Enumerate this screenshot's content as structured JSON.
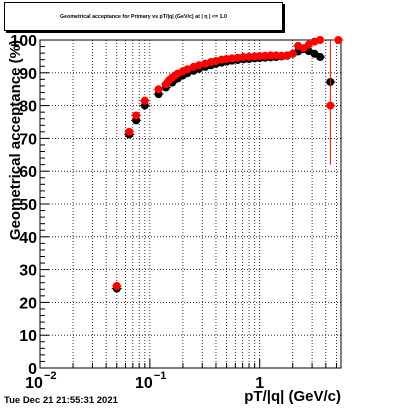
{
  "timestamp": "Tue Dec 21 21:55:31 2021",
  "chart_data": {
    "type": "scatter",
    "title": "Geometrical acceptance for Primary vs pT/|q| (GeV/c) at | η | <= 1.0",
    "xlabel": "pT/|q| (GeV/c)",
    "ylabel": "Geometrical acceptance (%)",
    "xscale": "log",
    "xlim": [
      0.01,
      5.5
    ],
    "ylim": [
      0,
      100
    ],
    "grid": true,
    "x_tick_labels": [
      {
        "value": 0.01,
        "base": "10",
        "exp": "−2"
      },
      {
        "value": 0.1,
        "base": "10",
        "exp": "−1"
      },
      {
        "value": 1,
        "base": "1",
        "exp": ""
      }
    ],
    "y_ticks": [
      0,
      10,
      20,
      30,
      40,
      50,
      60,
      70,
      80,
      90,
      100
    ],
    "series": [
      {
        "color": "#000000",
        "points": [
          {
            "x": 0.05,
            "y": 24.2
          },
          {
            "x": 0.065,
            "y": 71.2
          },
          {
            "x": 0.075,
            "y": 75.5
          },
          {
            "x": 0.09,
            "y": 80
          },
          {
            "x": 0.12,
            "y": 83.5
          },
          {
            "x": 0.14,
            "y": 85.5
          },
          {
            "x": 0.16,
            "y": 87
          },
          {
            "x": 0.18,
            "y": 88.3
          },
          {
            "x": 0.2,
            "y": 89.2
          },
          {
            "x": 0.22,
            "y": 89.9
          },
          {
            "x": 0.25,
            "y": 90.6
          },
          {
            "x": 0.28,
            "y": 91.2
          },
          {
            "x": 0.32,
            "y": 91.8
          },
          {
            "x": 0.36,
            "y": 92.3
          },
          {
            "x": 0.4,
            "y": 92.7
          },
          {
            "x": 0.45,
            "y": 93.1
          },
          {
            "x": 0.5,
            "y": 93.4
          },
          {
            "x": 0.56,
            "y": 93.7
          },
          {
            "x": 0.63,
            "y": 93.9
          },
          {
            "x": 0.71,
            "y": 94.1
          },
          {
            "x": 0.8,
            "y": 94.2
          },
          {
            "x": 0.9,
            "y": 94.4
          },
          {
            "x": 1.0,
            "y": 94.5
          },
          {
            "x": 1.12,
            "y": 94.6
          },
          {
            "x": 1.26,
            "y": 94.7
          },
          {
            "x": 1.41,
            "y": 94.8
          },
          {
            "x": 1.58,
            "y": 95
          },
          {
            "x": 1.78,
            "y": 95.2
          },
          {
            "x": 2.0,
            "y": 95.8
          },
          {
            "x": 2.24,
            "y": 96.5
          },
          {
            "x": 2.5,
            "y": 97.2
          },
          {
            "x": 2.8,
            "y": 96.6
          },
          {
            "x": 3.16,
            "y": 95.8
          },
          {
            "x": 3.55,
            "y": 94.8
          },
          {
            "x": 4.4,
            "y": 87.2
          }
        ]
      },
      {
        "color": "#ff0000",
        "points": [
          {
            "x": 0.05,
            "y": 25
          },
          {
            "x": 0.065,
            "y": 72
          },
          {
            "x": 0.075,
            "y": 77
          },
          {
            "x": 0.09,
            "y": 81.5
          },
          {
            "x": 0.12,
            "y": 85
          },
          {
            "x": 0.14,
            "y": 86.5
          },
          {
            "x": 0.15,
            "y": 87.8
          },
          {
            "x": 0.16,
            "y": 88.6
          },
          {
            "x": 0.17,
            "y": 89.2
          },
          {
            "x": 0.18,
            "y": 89.8
          },
          {
            "x": 0.2,
            "y": 90.5
          },
          {
            "x": 0.22,
            "y": 91.1
          },
          {
            "x": 0.25,
            "y": 91.8
          },
          {
            "x": 0.28,
            "y": 92.3
          },
          {
            "x": 0.32,
            "y": 92.8
          },
          {
            "x": 0.36,
            "y": 93.3
          },
          {
            "x": 0.4,
            "y": 93.6
          },
          {
            "x": 0.45,
            "y": 94
          },
          {
            "x": 0.5,
            "y": 94.2
          },
          {
            "x": 0.56,
            "y": 94.4
          },
          {
            "x": 0.63,
            "y": 94.6
          },
          {
            "x": 0.71,
            "y": 94.8
          },
          {
            "x": 0.8,
            "y": 94.9
          },
          {
            "x": 0.9,
            "y": 95
          },
          {
            "x": 1.0,
            "y": 95.1
          },
          {
            "x": 1.12,
            "y": 95.2
          },
          {
            "x": 1.26,
            "y": 95.3
          },
          {
            "x": 1.41,
            "y": 95.3
          },
          {
            "x": 1.58,
            "y": 95.2
          },
          {
            "x": 1.78,
            "y": 95.3
          },
          {
            "x": 2.0,
            "y": 95.8
          },
          {
            "x": 2.24,
            "y": 98.2
          },
          {
            "x": 2.5,
            "y": 97.5
          },
          {
            "x": 2.8,
            "y": 98.6
          },
          {
            "x": 3.16,
            "y": 99.5
          },
          {
            "x": 3.55,
            "y": 100
          },
          {
            "x": 4.4,
            "y": 80
          },
          {
            "x": 5.2,
            "y": 100
          }
        ]
      }
    ]
  }
}
